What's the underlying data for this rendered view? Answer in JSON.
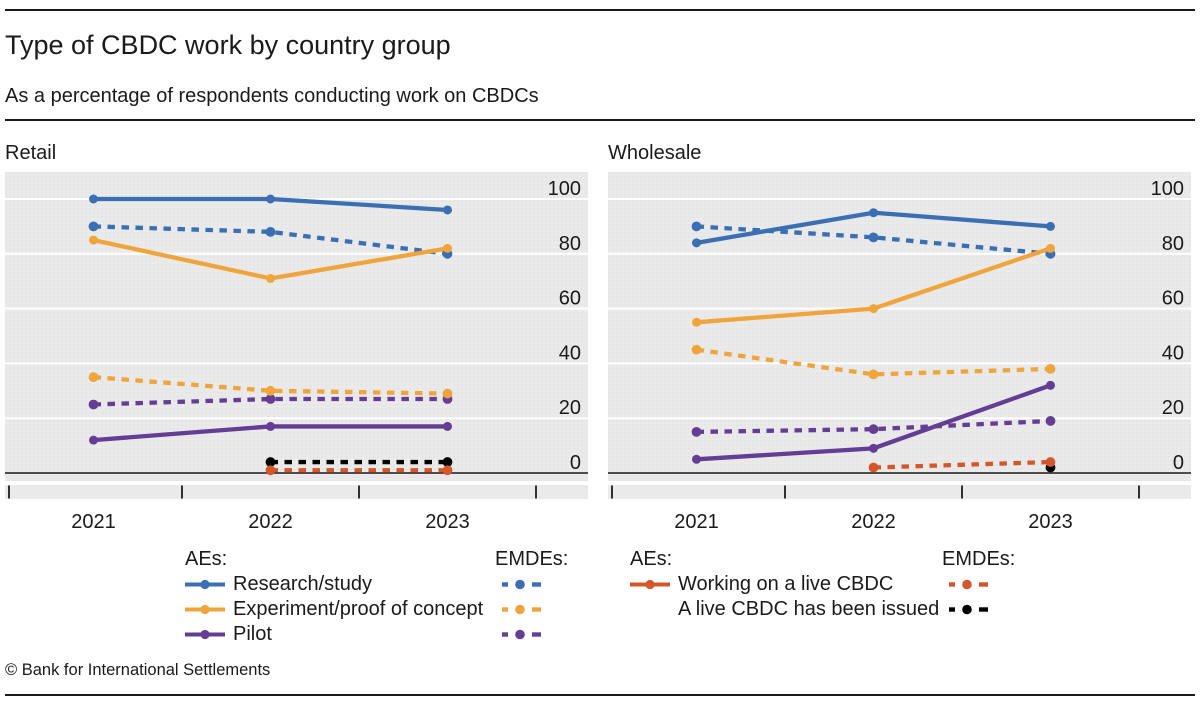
{
  "header": {
    "title": "Type of CBDC work by country group",
    "subtitle": "As a percentage of respondents conducting work on CBDCs"
  },
  "footer": {
    "copyright": "© Bank for International Settlements"
  },
  "colors": {
    "blue": "#3a6fb3",
    "orange": "#f0a43c",
    "purple": "#643d94",
    "red": "#d4572b",
    "black": "#000000",
    "plot_bg": "#eaeaea",
    "plot_dot": "#dfdfdf",
    "grid": "#ffffff",
    "axis": "#1a1a1a"
  },
  "chart_data": [
    {
      "type": "line",
      "title": "Retail",
      "x": [
        "2021",
        "2022",
        "2023"
      ],
      "ylabel": "",
      "xlabel": "",
      "ylim": [
        -3,
        110
      ],
      "yticks": [
        0,
        20,
        40,
        60,
        80,
        100
      ],
      "grid": true,
      "series": [
        {
          "name": "Research/study (EMDEs)",
          "color": "blue",
          "dash": true,
          "values": [
            90,
            88,
            80
          ]
        },
        {
          "name": "Research/study (AEs)",
          "color": "blue",
          "dash": false,
          "values": [
            100,
            100,
            96
          ]
        },
        {
          "name": "Pilot (EMDEs)",
          "color": "purple",
          "dash": true,
          "values": [
            25,
            27,
            27
          ]
        },
        {
          "name": "Pilot (AEs)",
          "color": "purple",
          "dash": false,
          "values": [
            12,
            17,
            17
          ]
        },
        {
          "name": "Experiment/proof of concept (EMDEs)",
          "color": "orange",
          "dash": true,
          "values": [
            35,
            30,
            29
          ]
        },
        {
          "name": "Experiment/proof of concept (AEs)",
          "color": "orange",
          "dash": false,
          "values": [
            85,
            71,
            82
          ]
        },
        {
          "name": "A live CBDC has been issued (EMDEs)",
          "color": "black",
          "dash": true,
          "values": [
            null,
            4,
            4
          ]
        },
        {
          "name": "Working on a live CBDC (EMDEs)",
          "color": "red",
          "dash": true,
          "values": [
            null,
            1,
            1
          ]
        }
      ]
    },
    {
      "type": "line",
      "title": "Wholesale",
      "x": [
        "2021",
        "2022",
        "2023"
      ],
      "ylabel": "",
      "xlabel": "",
      "ylim": [
        -3,
        110
      ],
      "yticks": [
        0,
        20,
        40,
        60,
        80,
        100
      ],
      "grid": true,
      "series": [
        {
          "name": "Research/study (EMDEs)",
          "color": "blue",
          "dash": true,
          "values": [
            90,
            86,
            80
          ]
        },
        {
          "name": "Research/study (AEs)",
          "color": "blue",
          "dash": false,
          "values": [
            84,
            95,
            90
          ]
        },
        {
          "name": "Pilot (EMDEs)",
          "color": "purple",
          "dash": true,
          "values": [
            15,
            16,
            19
          ]
        },
        {
          "name": "Pilot (AEs)",
          "color": "purple",
          "dash": false,
          "values": [
            5,
            9,
            32
          ]
        },
        {
          "name": "Experiment/proof of concept (EMDEs)",
          "color": "orange",
          "dash": true,
          "values": [
            45,
            36,
            38
          ]
        },
        {
          "name": "Experiment/proof of concept (AEs)",
          "color": "orange",
          "dash": false,
          "values": [
            55,
            60,
            82
          ]
        },
        {
          "name": "A live CBDC has been issued (EMDEs)",
          "color": "black",
          "dash": true,
          "values": [
            null,
            null,
            2
          ]
        },
        {
          "name": "Working on a live CBDC (EMDEs)",
          "color": "red",
          "dash": true,
          "values": [
            null,
            2,
            4
          ]
        }
      ]
    }
  ],
  "legends": [
    {
      "aes_label": "AEs:",
      "emdes_label": "EMDEs:",
      "rows": [
        {
          "label": "Research/study",
          "color": "blue",
          "has_solid": true,
          "has_dash": true
        },
        {
          "label": "Experiment/proof of concept",
          "color": "orange",
          "has_solid": true,
          "has_dash": true
        },
        {
          "label": "Pilot",
          "color": "purple",
          "has_solid": true,
          "has_dash": true
        }
      ]
    },
    {
      "aes_label": "AEs:",
      "emdes_label": "EMDEs:",
      "rows": [
        {
          "label": "Working on a live CBDC",
          "color": "red",
          "has_solid": true,
          "has_dash": true
        },
        {
          "label": "A live CBDC has been issued",
          "color": "black",
          "has_solid": false,
          "has_dash": true
        }
      ]
    }
  ]
}
